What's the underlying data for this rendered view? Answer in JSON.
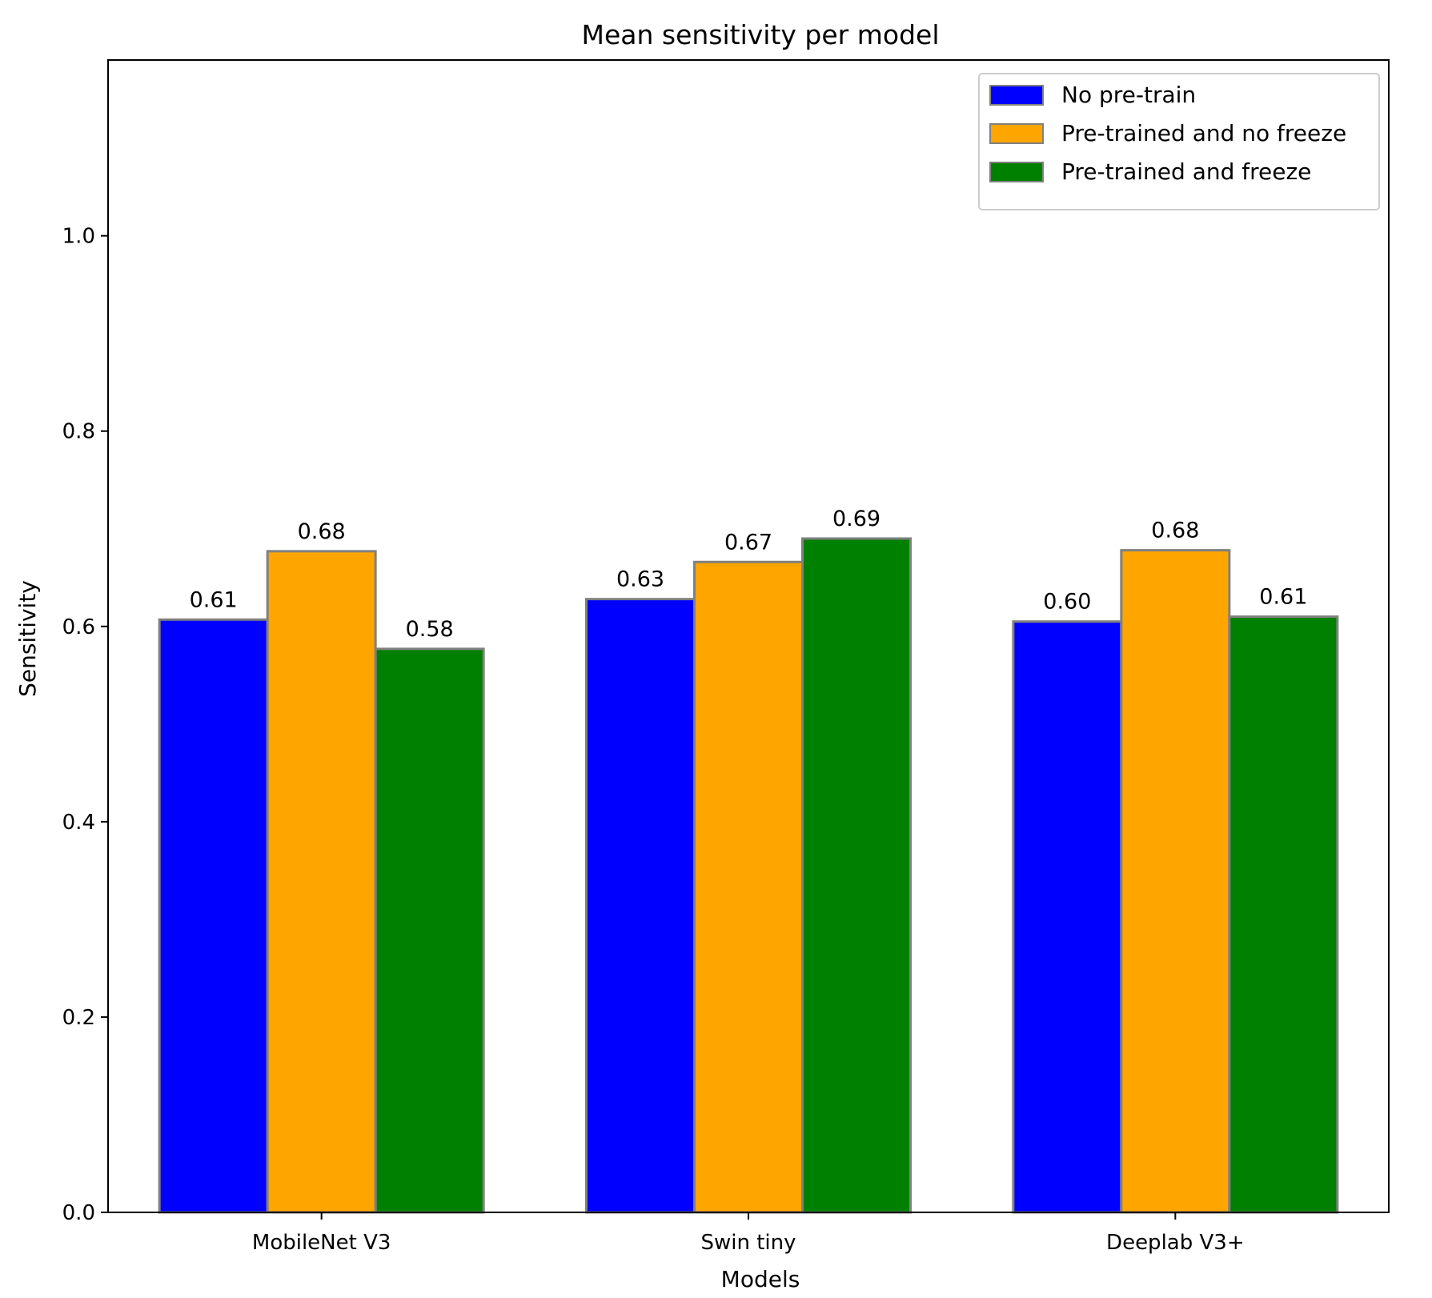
{
  "chart_data": {
    "type": "bar",
    "title": "Mean sensitivity per model",
    "xlabel": "Models",
    "ylabel": "Sensitivity",
    "categories": [
      "MobileNet V3",
      "Swin tiny",
      "Deeplab V3+"
    ],
    "ylim": [
      0,
      1.18
    ],
    "yticks": [
      0.0,
      0.2,
      0.4,
      0.6,
      0.8,
      1.0
    ],
    "ytick_labels": [
      "0.0",
      "0.2",
      "0.4",
      "0.6",
      "0.8",
      "1.0"
    ],
    "grid": false,
    "legend_position": "top-right",
    "bar_edge_color": "#808080",
    "series": [
      {
        "name": "No pre-train",
        "color": "#0000ff",
        "values": [
          0.607,
          0.628,
          0.605
        ],
        "labels": [
          "0.61",
          "0.63",
          "0.60"
        ]
      },
      {
        "name": "Pre-trained and no freeze",
        "color": "#ffa500",
        "values": [
          0.677,
          0.666,
          0.678
        ],
        "labels": [
          "0.68",
          "0.67",
          "0.68"
        ]
      },
      {
        "name": "Pre-trained and freeze",
        "color": "#008000",
        "values": [
          0.577,
          0.69,
          0.61
        ],
        "labels": [
          "0.58",
          "0.69",
          "0.61"
        ]
      }
    ]
  }
}
